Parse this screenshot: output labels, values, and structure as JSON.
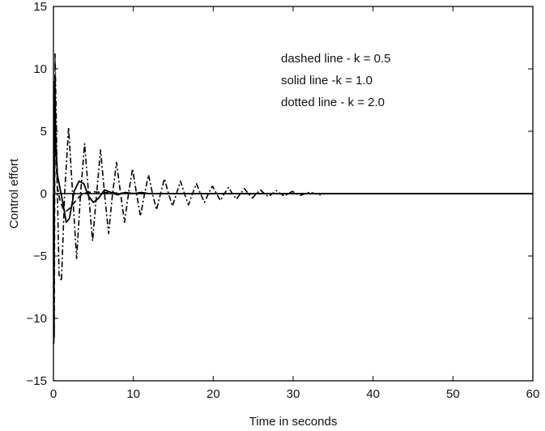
{
  "chart_data": {
    "type": "line",
    "xlabel": "Time in seconds",
    "ylabel": "Control effort",
    "xlim": [
      0,
      60
    ],
    "ylim": [
      -15,
      15
    ],
    "xticks": [
      0,
      10,
      20,
      30,
      40,
      50,
      60
    ],
    "yticks": [
      -15,
      -10,
      -5,
      0,
      5,
      10,
      15
    ],
    "xtick_labels": [
      "0",
      "10",
      "20",
      "30",
      "40",
      "50",
      "60"
    ],
    "ytick_labels": [
      "−15",
      "−10",
      "−5",
      "0",
      "5",
      "10",
      "15"
    ],
    "grid": false,
    "legend_placement": "top-right (inside plot, text annotation)",
    "annotations": [
      "dashed line - k = 0.5",
      "solid line -k = 1.0",
      "dotted line - k = 2.0"
    ],
    "series": [
      {
        "style": "dashed",
        "color": "#000000",
        "x": [
          0,
          0.1,
          0.2,
          0.3,
          0.5,
          0.8,
          1.2,
          1.6,
          2.0,
          2.5,
          3.0,
          3.5,
          4.0,
          5.0,
          6.0,
          8.0,
          10.0,
          15.0,
          20.0,
          30.0,
          60.0
        ],
        "y": [
          0,
          -11.5,
          9.5,
          3.0,
          0.5,
          -0.5,
          -1.2,
          -1.4,
          -1.2,
          -0.8,
          -0.4,
          -0.1,
          0.05,
          0.15,
          0.1,
          0.05,
          0.02,
          0.0,
          0.0,
          0.0,
          0.0
        ]
      },
      {
        "style": "solid",
        "color": "#000000",
        "x": [
          0,
          0.05,
          0.15,
          0.3,
          0.5,
          0.8,
          1.2,
          1.6,
          2.0,
          2.6,
          3.2,
          3.8,
          4.4,
          5.0,
          5.6,
          6.4,
          7.2,
          8.0,
          9.0,
          10.0,
          11.0,
          12.0,
          14.0,
          20.0,
          30.0,
          60.0
        ],
        "y": [
          0,
          -11.0,
          9.0,
          4.0,
          1.5,
          0.5,
          -0.8,
          -2.3,
          -2.0,
          0.2,
          1.0,
          0.8,
          -0.2,
          -0.7,
          -0.4,
          0.3,
          0.1,
          -0.1,
          0.1,
          0.0,
          0.1,
          0.0,
          0.0,
          0.0,
          0.0,
          0.0
        ]
      },
      {
        "style": "dashdot",
        "color": "#000000",
        "x": [
          0,
          0.05,
          0.2,
          0.35,
          0.5,
          0.7,
          1.0,
          1.4,
          1.9,
          2.4,
          2.9,
          3.4,
          3.9,
          4.4,
          4.9,
          5.4,
          5.9,
          6.4,
          6.9,
          7.4,
          7.9,
          8.4,
          8.9,
          9.4,
          9.9,
          10.4,
          10.9,
          11.4,
          11.9,
          12.4,
          12.9,
          13.4,
          13.9,
          14.4,
          14.9,
          15.4,
          15.9,
          16.4,
          16.9,
          17.4,
          17.9,
          18.4,
          18.9,
          19.4,
          19.9,
          20.4,
          20.9,
          21.4,
          21.9,
          22.4,
          22.9,
          23.4,
          23.9,
          24.4,
          24.9,
          25.4,
          25.9,
          26.4,
          26.9,
          27.4,
          27.9,
          28.4,
          28.9,
          29.4,
          29.9,
          30.4,
          30.9,
          31.5,
          32.1,
          32.7,
          33.3,
          34.0,
          60.0
        ],
        "y": [
          0,
          -12.0,
          11.2,
          6.0,
          0.0,
          -6.5,
          -7.0,
          0.0,
          5.3,
          0.0,
          -5.2,
          0.0,
          4.0,
          0.0,
          -3.8,
          0.0,
          3.5,
          0.0,
          -3.2,
          0.0,
          2.5,
          0.0,
          -2.3,
          0.0,
          2.0,
          0.0,
          -1.8,
          0.0,
          1.5,
          0.0,
          -1.3,
          0.0,
          1.2,
          0.0,
          -1.0,
          0.0,
          1.0,
          0.0,
          -0.9,
          0.0,
          0.8,
          0.0,
          -0.7,
          0.0,
          0.6,
          0.0,
          -0.55,
          0.0,
          0.5,
          0.0,
          -0.45,
          0.0,
          0.4,
          0.0,
          -0.35,
          0.0,
          0.3,
          0.0,
          -0.25,
          0.0,
          0.25,
          0.0,
          -0.2,
          0.0,
          0.18,
          0.0,
          -0.15,
          0.0,
          0.12,
          0.0,
          -0.1,
          0.0,
          0.0
        ]
      }
    ]
  }
}
